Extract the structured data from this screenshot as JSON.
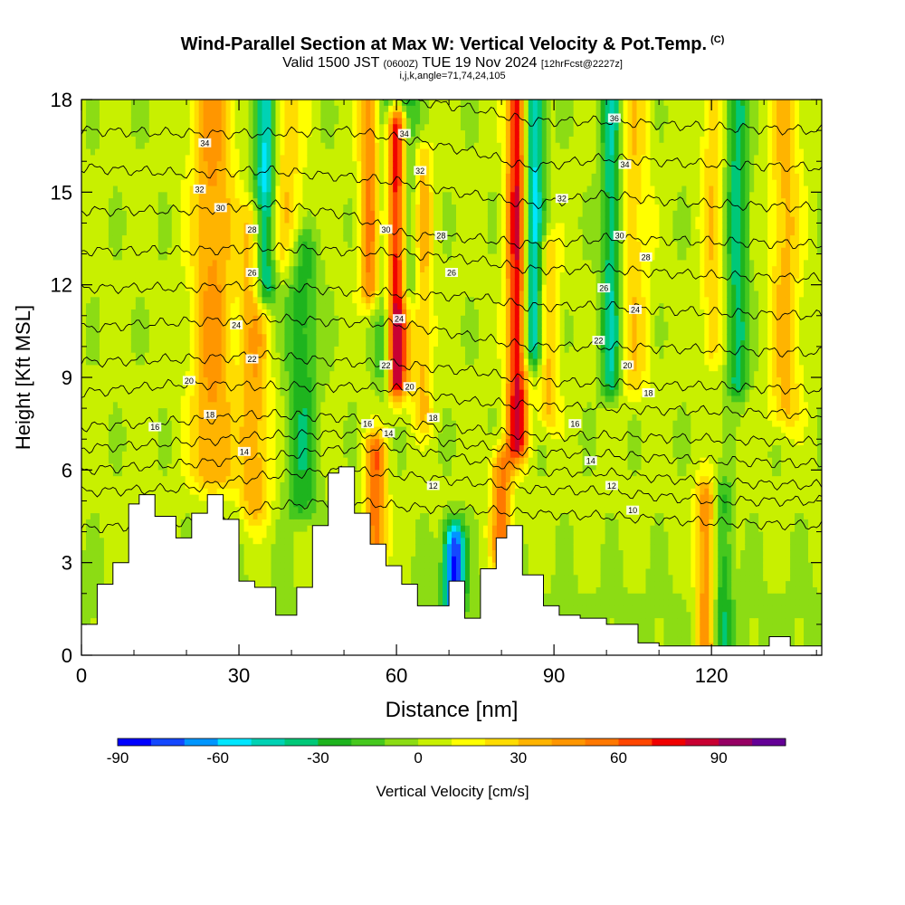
{
  "header": {
    "title": "Wind-Parallel Section at Max W: Vertical Velocity & Pot.Temp.",
    "title_mark": "(C)",
    "valid_prefix": "Valid 1500 JST",
    "valid_utc": "(0600Z)",
    "valid_date": "TUE 19 Nov 2024",
    "forecast_tag": "[12hrFcst@2227z]",
    "ijk_line": "i,j,k,angle=71,74,24,105"
  },
  "colorbar": {
    "title": "Vertical Velocity [cm/s]",
    "tick_labels": [
      "-90",
      "-60",
      "-30",
      "0",
      "30",
      "60",
      "90"
    ],
    "levels": [
      -90,
      -80,
      -70,
      -60,
      -50,
      -40,
      -30,
      -20,
      -10,
      0,
      10,
      20,
      30,
      40,
      50,
      60,
      70,
      80,
      90,
      100,
      110
    ],
    "colors": [
      "#0000ff",
      "#1448ff",
      "#0096ff",
      "#00e6ff",
      "#00d2b4",
      "#00c878",
      "#1eb41e",
      "#46c81e",
      "#8cdc14",
      "#c8f000",
      "#ffff00",
      "#ffdc00",
      "#ffb400",
      "#ff9600",
      "#ff7800",
      "#ff4600",
      "#f00000",
      "#c80032",
      "#960064",
      "#640096"
    ]
  },
  "chart_data": {
    "type": "heatmap",
    "title": "Wind-Parallel Section at Max W: Vertical Velocity & Pot.Temp.",
    "xlabel": "Distance [nm]",
    "ylabel": "Height [Kft MSL]",
    "xlim": [
      0,
      141
    ],
    "ylim": [
      0,
      18
    ],
    "x_ticks": [
      0,
      30,
      60,
      90,
      120
    ],
    "y_ticks": [
      0,
      3,
      6,
      9,
      12,
      15,
      18
    ],
    "grid": false,
    "fill_variable": "Vertical Velocity [cm/s]",
    "contour_variable": "Potential Temperature",
    "terrain_profile": {
      "x": [
        0,
        3,
        6,
        9,
        11,
        14,
        18,
        21,
        24,
        27,
        30,
        33,
        37,
        41,
        44,
        47,
        49,
        52,
        55,
        58,
        61,
        64,
        67,
        70,
        73,
        76,
        79,
        81,
        84,
        88,
        91,
        95,
        100,
        106,
        110,
        115,
        120,
        126,
        131,
        135,
        141
      ],
      "height_kft": [
        1.0,
        2.3,
        3.0,
        4.9,
        5.2,
        4.5,
        3.8,
        4.6,
        5.2,
        4.4,
        2.4,
        2.2,
        1.3,
        2.2,
        4.2,
        5.9,
        6.1,
        4.6,
        3.6,
        2.9,
        2.3,
        1.6,
        1.6,
        2.4,
        1.2,
        2.8,
        3.8,
        4.2,
        2.6,
        1.6,
        1.3,
        1.2,
        1.0,
        0.4,
        0.3,
        0.3,
        0.3,
        0.3,
        0.6,
        0.3,
        0.3
      ]
    },
    "updraft_cores": [
      {
        "x": 25,
        "ymin": 6.0,
        "ymax": 18,
        "peak_cms": 40,
        "width": 4
      },
      {
        "x": 33,
        "ymin": 5.0,
        "ymax": 14,
        "peak_cms": 35,
        "width": 3
      },
      {
        "x": 39,
        "ymin": 13.0,
        "ymax": 18,
        "peak_cms": 25,
        "width": 3
      },
      {
        "x": 56,
        "ymin": 3.5,
        "ymax": 6.5,
        "peak_cms": 55,
        "width": 2
      },
      {
        "x": 55,
        "ymin": 12.0,
        "ymax": 18,
        "peak_cms": 50,
        "width": 2
      },
      {
        "x": 60,
        "ymin": 9.0,
        "ymax": 17,
        "peak_cms": 95,
        "width": 2
      },
      {
        "x": 65,
        "ymin": 8.0,
        "ymax": 16,
        "peak_cms": 30,
        "width": 2
      },
      {
        "x": 80,
        "ymin": 3.5,
        "ymax": 6.0,
        "peak_cms": 50,
        "width": 2
      },
      {
        "x": 83,
        "ymin": 7.0,
        "ymax": 18,
        "peak_cms": 80,
        "width": 2
      },
      {
        "x": 89,
        "ymin": 8.0,
        "ymax": 13,
        "peak_cms": 30,
        "width": 2
      },
      {
        "x": 105,
        "ymin": 9.0,
        "ymax": 18,
        "peak_cms": 25,
        "width": 3
      },
      {
        "x": 119,
        "ymin": 0.3,
        "ymax": 5.0,
        "peak_cms": 50,
        "width": 2
      },
      {
        "x": 120,
        "ymin": 10.0,
        "ymax": 18,
        "peak_cms": 25,
        "width": 2
      },
      {
        "x": 134,
        "ymin": 8.0,
        "ymax": 18,
        "peak_cms": 30,
        "width": 3
      }
    ],
    "downdraft_cores": [
      {
        "x": 35,
        "ymin": 12.0,
        "ymax": 18,
        "peak_cms": -60,
        "width": 2
      },
      {
        "x": 42,
        "ymin": 5.0,
        "ymax": 13,
        "peak_cms": -30,
        "width": 3
      },
      {
        "x": 58,
        "ymin": 9.0,
        "ymax": 18,
        "peak_cms": -30,
        "width": 2
      },
      {
        "x": 62,
        "ymin": 12.0,
        "ymax": 18,
        "peak_cms": -35,
        "width": 2
      },
      {
        "x": 71,
        "ymin": 2.0,
        "ymax": 3.6,
        "peak_cms": -85,
        "width": 2
      },
      {
        "x": 86,
        "ymin": 10.0,
        "ymax": 18,
        "peak_cms": -60,
        "width": 2
      },
      {
        "x": 101,
        "ymin": 9.0,
        "ymax": 18,
        "peak_cms": -45,
        "width": 2
      },
      {
        "x": 125,
        "ymin": 9.0,
        "ymax": 18,
        "peak_cms": -40,
        "width": 2
      },
      {
        "x": 122,
        "ymin": 0.5,
        "ymax": 5.0,
        "peak_cms": -30,
        "width": 2
      }
    ],
    "theta_contours": {
      "values": [
        10,
        12,
        14,
        16,
        18,
        20,
        22,
        24,
        26,
        28,
        30,
        32,
        34,
        36
      ],
      "anchor_x": [
        0,
        20,
        35,
        50,
        62,
        75,
        85,
        100,
        120,
        141
      ],
      "heights_kft": [
        [
          4.1,
          4.3,
          4.8,
          5.0,
          4.8,
          4.7,
          4.6,
          4.5,
          4.3,
          4.2
        ],
        [
          5.3,
          5.4,
          5.8,
          6.0,
          5.8,
          5.6,
          5.4,
          5.3,
          5.0,
          5.0
        ],
        [
          6.0,
          6.2,
          6.4,
          6.7,
          6.7,
          6.3,
          6.0,
          5.9,
          5.6,
          5.5
        ],
        [
          6.7,
          6.9,
          7.1,
          7.2,
          7.1,
          6.8,
          6.6,
          6.5,
          6.3,
          6.2
        ],
        [
          7.4,
          7.6,
          7.8,
          7.7,
          7.5,
          7.3,
          7.1,
          7.1,
          7.0,
          6.9
        ],
        [
          8.5,
          8.8,
          8.7,
          8.7,
          8.6,
          8.2,
          8.1,
          8.0,
          7.9,
          7.8
        ],
        [
          9.5,
          9.6,
          9.7,
          9.5,
          9.4,
          9.2,
          8.9,
          8.8,
          8.7,
          8.6
        ],
        [
          10.6,
          10.8,
          10.9,
          10.8,
          10.7,
          10.3,
          10.0,
          10.0,
          9.9,
          9.8
        ],
        [
          11.9,
          11.9,
          12.0,
          11.8,
          11.7,
          11.6,
          11.3,
          11.3,
          11.1,
          11.0
        ],
        [
          13.1,
          13.1,
          13.2,
          13.1,
          13.0,
          12.8,
          12.5,
          12.5,
          12.3,
          12.2
        ],
        [
          14.4,
          14.4,
          14.6,
          14.3,
          13.6,
          13.5,
          13.3,
          13.5,
          13.4,
          13.3
        ],
        [
          15.8,
          15.6,
          15.7,
          15.5,
          15.3,
          14.9,
          14.6,
          14.9,
          14.6,
          14.5
        ],
        [
          17.0,
          16.9,
          16.9,
          17.0,
          16.7,
          16.3,
          15.8,
          16.1,
          15.9,
          15.8
        ],
        [
          18.2,
          18.2,
          18.2,
          18.2,
          18.0,
          17.7,
          17.3,
          17.3,
          17.1,
          17.0
        ]
      ]
    },
    "contour_labels": [
      {
        "text": "34",
        "x": 23.5,
        "y": 16.6
      },
      {
        "text": "32",
        "x": 22.5,
        "y": 15.1
      },
      {
        "text": "30",
        "x": 26.5,
        "y": 14.5
      },
      {
        "text": "28",
        "x": 32.5,
        "y": 13.8
      },
      {
        "text": "26",
        "x": 32.5,
        "y": 12.4
      },
      {
        "text": "24",
        "x": 29.5,
        "y": 10.7
      },
      {
        "text": "22",
        "x": 32.5,
        "y": 9.6
      },
      {
        "text": "20",
        "x": 20.5,
        "y": 8.9
      },
      {
        "text": "18",
        "x": 24.5,
        "y": 7.8
      },
      {
        "text": "16",
        "x": 14.0,
        "y": 7.4
      },
      {
        "text": "14",
        "x": 31.0,
        "y": 6.6
      },
      {
        "text": "34",
        "x": 61.5,
        "y": 16.9
      },
      {
        "text": "32",
        "x": 64.5,
        "y": 15.7
      },
      {
        "text": "30",
        "x": 58.0,
        "y": 13.8
      },
      {
        "text": "28",
        "x": 68.5,
        "y": 13.6
      },
      {
        "text": "26",
        "x": 70.5,
        "y": 12.4
      },
      {
        "text": "24",
        "x": 60.5,
        "y": 10.9
      },
      {
        "text": "22",
        "x": 58.0,
        "y": 9.4
      },
      {
        "text": "20",
        "x": 62.5,
        "y": 8.7
      },
      {
        "text": "18",
        "x": 67.0,
        "y": 7.7
      },
      {
        "text": "16",
        "x": 54.5,
        "y": 7.5
      },
      {
        "text": "14",
        "x": 58.5,
        "y": 7.2
      },
      {
        "text": "12",
        "x": 67.0,
        "y": 5.5
      },
      {
        "text": "36",
        "x": 101.5,
        "y": 17.4
      },
      {
        "text": "34",
        "x": 103.5,
        "y": 15.9
      },
      {
        "text": "32",
        "x": 91.5,
        "y": 14.8
      },
      {
        "text": "30",
        "x": 102.5,
        "y": 13.6
      },
      {
        "text": "28",
        "x": 107.5,
        "y": 12.9
      },
      {
        "text": "26",
        "x": 99.5,
        "y": 11.9
      },
      {
        "text": "24",
        "x": 105.5,
        "y": 11.2
      },
      {
        "text": "22",
        "x": 98.5,
        "y": 10.2
      },
      {
        "text": "20",
        "x": 104.0,
        "y": 9.4
      },
      {
        "text": "18",
        "x": 108.0,
        "y": 8.5
      },
      {
        "text": "16",
        "x": 94.0,
        "y": 7.5
      },
      {
        "text": "14",
        "x": 97.0,
        "y": 6.3
      },
      {
        "text": "12",
        "x": 101.0,
        "y": 5.5
      },
      {
        "text": "10",
        "x": 105.0,
        "y": 4.7
      }
    ]
  }
}
